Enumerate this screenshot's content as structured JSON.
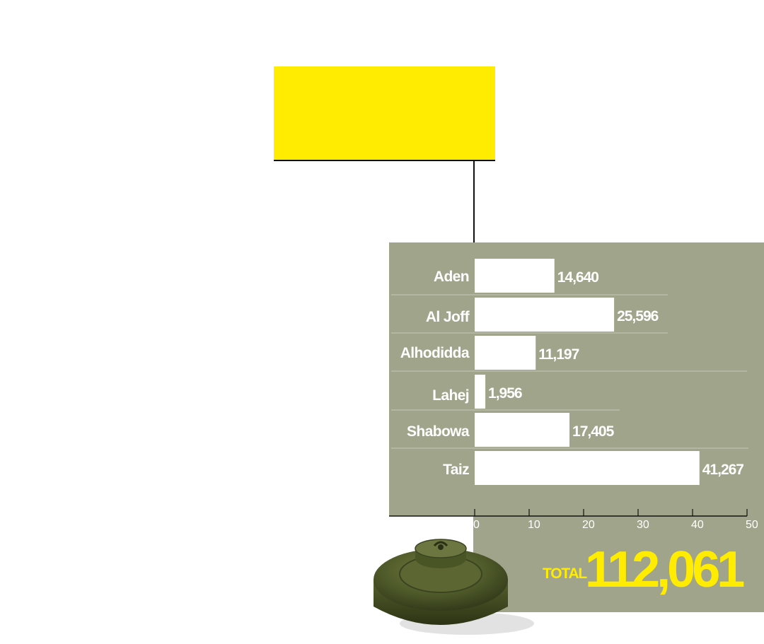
{
  "colors": {
    "accent": "#ffec00",
    "panel": "#a0a48a",
    "bar": "#ffffff",
    "text": "#ffffff"
  },
  "total": {
    "label": "TOTAL",
    "value": "112,061"
  },
  "chart_data": {
    "type": "bar",
    "orientation": "horizontal",
    "title": "",
    "xlabel": "",
    "ylabel": "",
    "categories": [
      "Aden",
      "Al Joff",
      "Alhodidda",
      "Lahej",
      "Shabowa",
      "Taiz"
    ],
    "values": [
      14640,
      25596,
      11197,
      1956,
      17405,
      41267
    ],
    "value_labels": [
      "14,640",
      "25,596",
      "11,197",
      "1,956",
      "17,405",
      "41,267"
    ],
    "axis_ticks": [
      "0",
      "10",
      "20",
      "30",
      "40",
      "50"
    ],
    "xlim": [
      0,
      50000
    ],
    "grid": false,
    "legend": "none"
  },
  "decoration": {
    "image": "landmine-icon"
  }
}
